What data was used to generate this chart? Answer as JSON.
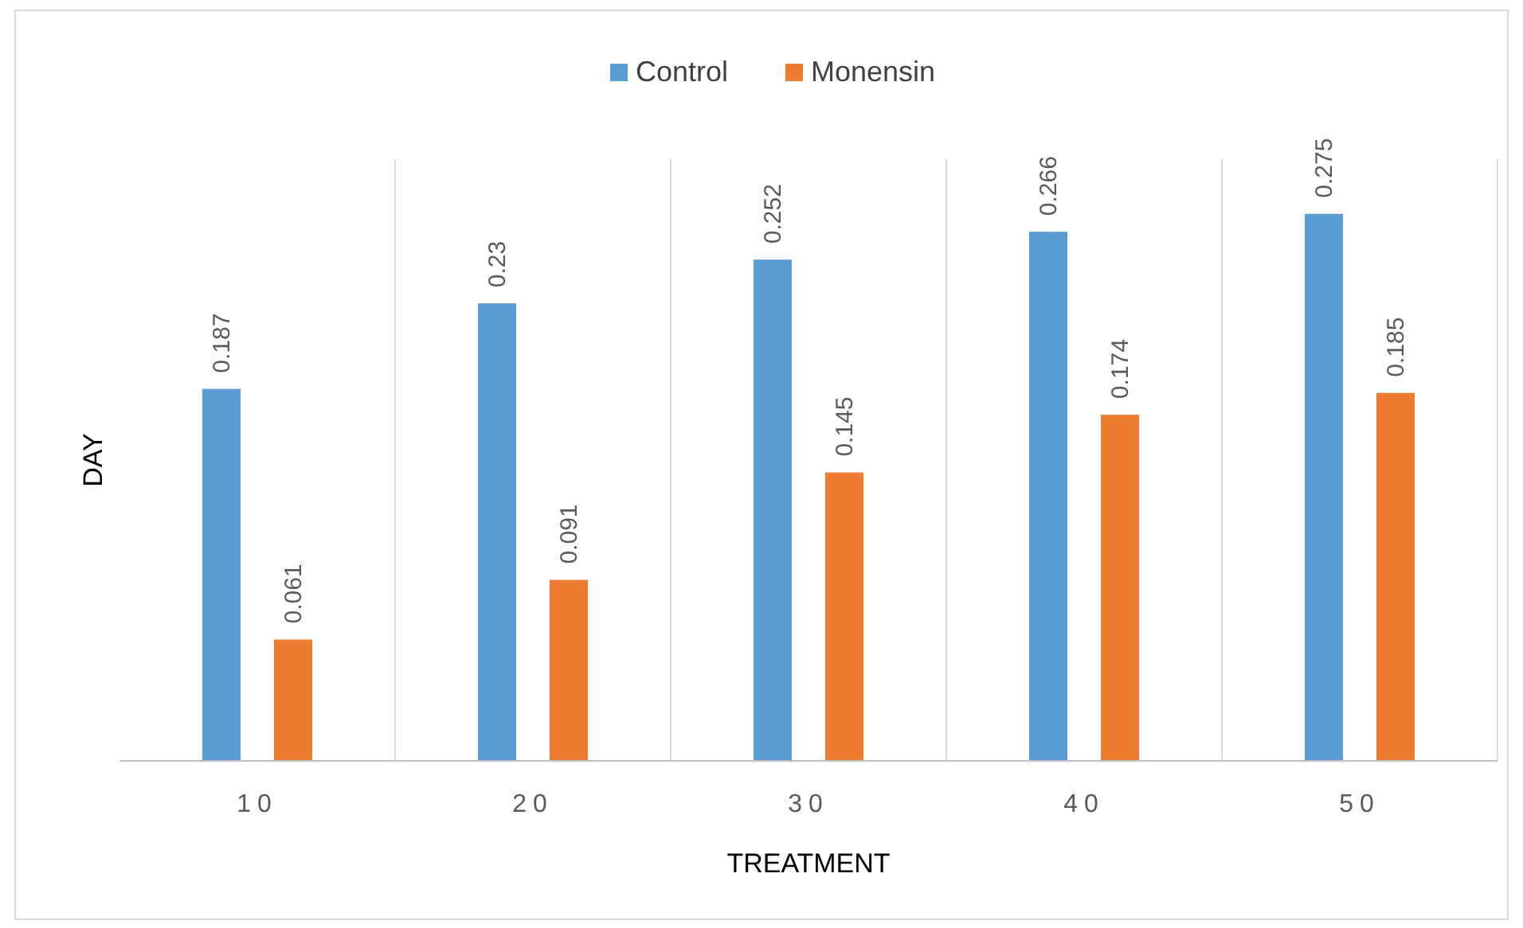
{
  "chart_data": {
    "type": "bar",
    "xlabel": "TREATMENT",
    "ylabel": "DAY",
    "categories": [
      "10",
      "20",
      "30",
      "40",
      "50"
    ],
    "series": [
      {
        "name": "Control",
        "color": "#5b9bd5",
        "values": [
          0.187,
          0.23,
          0.252,
          0.266,
          0.275
        ]
      },
      {
        "name": "Monensin",
        "color": "#ed7d31",
        "values": [
          0.061,
          0.091,
          0.145,
          0.174,
          0.185
        ]
      }
    ],
    "data_labels": true,
    "grid": "x",
    "legend": "top"
  }
}
